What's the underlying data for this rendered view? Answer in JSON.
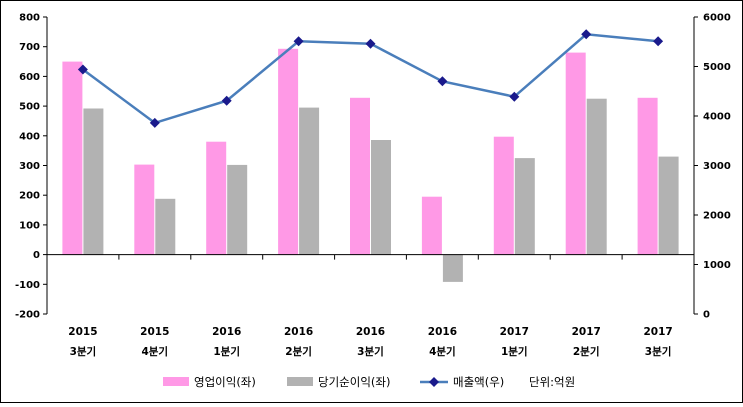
{
  "chart_data": {
    "type": "bar",
    "categories": [
      [
        "2015",
        "3분기"
      ],
      [
        "2015",
        "4분기"
      ],
      [
        "2016",
        "1분기"
      ],
      [
        "2016",
        "2분기"
      ],
      [
        "2016",
        "3분기"
      ],
      [
        "2016",
        "4분기"
      ],
      [
        "2017",
        "1분기"
      ],
      [
        "2017",
        "2분기"
      ],
      [
        "2017",
        "3분기"
      ]
    ],
    "series": [
      {
        "name": "영업이익(좌)",
        "kind": "bar",
        "axis": "left",
        "color": "#FF99E6",
        "values": [
          650,
          303,
          380,
          693,
          528,
          195,
          397,
          680,
          528
        ]
      },
      {
        "name": "당기순이익(좌)",
        "kind": "bar",
        "axis": "left",
        "color": "#B2B2B2",
        "values": [
          492,
          188,
          302,
          495,
          386,
          -92,
          325,
          525,
          330
        ]
      },
      {
        "name": "매출액(우)",
        "kind": "line",
        "axis": "right",
        "color": "#4A7EBB",
        "marker_color": "#1A1A8C",
        "values": [
          4940,
          3860,
          4310,
          5510,
          5460,
          4700,
          4390,
          5650,
          5510
        ]
      }
    ],
    "y_left": {
      "min": -200,
      "max": 800,
      "step": 100
    },
    "y_right": {
      "min": 0,
      "max": 6000,
      "step": 1000
    },
    "unit_note": "단위:억원",
    "legend_position": "bottom",
    "grid": false
  }
}
